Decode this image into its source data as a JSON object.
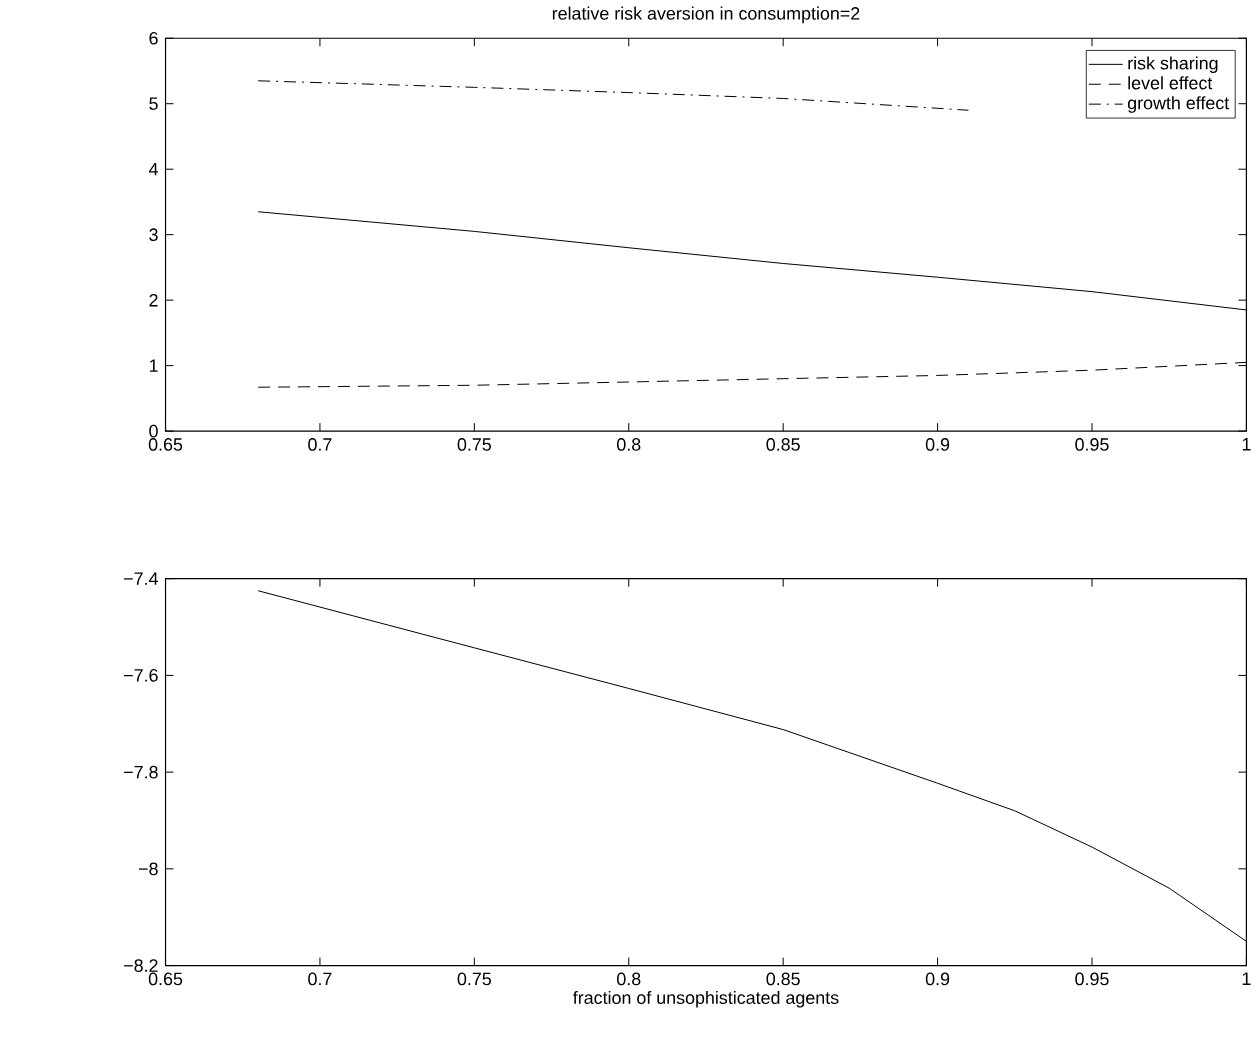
{
  "chart_data": [
    {
      "type": "line",
      "title": "relative risk aversion in consumption=2",
      "legend": "top right",
      "grid": false,
      "marker": "none",
      "xlim": [
        0.65,
        1
      ],
      "xticks": [
        0.65,
        0.7,
        0.75,
        0.8,
        0.85,
        0.9,
        0.95,
        1
      ],
      "ylim": [
        0,
        6
      ],
      "yticks": [
        0,
        1,
        2,
        3,
        4,
        5,
        6
      ],
      "series": [
        {
          "name": "risk sharing",
          "color": "#000000",
          "line_style": "solid",
          "x": [
            0.68,
            0.75,
            0.8,
            0.85,
            0.9,
            0.95,
            1
          ],
          "values": [
            3.35,
            3.05,
            2.8,
            2.56,
            2.35,
            2.13,
            1.85
          ]
        },
        {
          "name": "level effect",
          "color": "#000000",
          "line_style": "dashed",
          "x": [
            0.68,
            0.75,
            0.8,
            0.85,
            0.9,
            0.95,
            1
          ],
          "values": [
            0.67,
            0.7,
            0.75,
            0.8,
            0.85,
            0.93,
            1.05
          ]
        },
        {
          "name": "growth effect",
          "color": "#000000",
          "line_style": "dashdot",
          "x": [
            0.68,
            0.75,
            0.8,
            0.85,
            0.91
          ],
          "values": [
            5.35,
            5.25,
            5.17,
            5.08,
            4.9
          ]
        }
      ]
    },
    {
      "type": "line",
      "xlabel": "fraction of unsophisticated agents",
      "grid": false,
      "marker": "none",
      "xlim": [
        0.65,
        1
      ],
      "xticks": [
        0.65,
        0.7,
        0.75,
        0.8,
        0.85,
        0.9,
        0.95,
        1
      ],
      "ylim": [
        -8.2,
        -7.4
      ],
      "yticks": [
        {
          "value": -8.2,
          "label": "−8.2"
        },
        {
          "value": -8,
          "label": "−8"
        },
        {
          "value": -7.8,
          "label": "−7.8"
        },
        {
          "value": -7.6,
          "label": "−7.6"
        },
        {
          "value": -7.4,
          "label": "−7.4"
        }
      ],
      "series": [
        {
          "color": "#000000",
          "line_style": "solid",
          "x": [
            0.68,
            0.75,
            0.8,
            0.85,
            0.9,
            0.925,
            0.95,
            0.975,
            1
          ],
          "values": [
            -7.425,
            -7.543,
            -7.627,
            -7.712,
            -7.823,
            -7.88,
            -7.955,
            -8.04,
            -8.15
          ]
        }
      ]
    }
  ]
}
